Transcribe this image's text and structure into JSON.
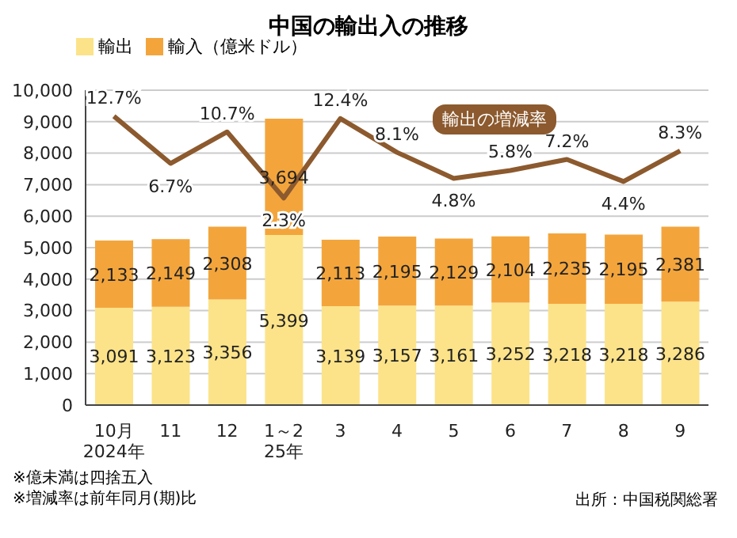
{
  "chart_data": {
    "type": "bar",
    "title": "中国の輸出入の推移",
    "categories": [
      "10月\n2024年",
      "11",
      "12",
      "1～2\n25年",
      "3",
      "4",
      "5",
      "6",
      "7",
      "8",
      "9"
    ],
    "stacked": true,
    "series": [
      {
        "name": "輸出",
        "color": "#fce38a",
        "values": [
          3091,
          3123,
          3356,
          5399,
          3139,
          3157,
          3161,
          3252,
          3218,
          3218,
          3286
        ],
        "value_labels": [
          "3,091",
          "3,123",
          "3,356",
          "5,399",
          "3,139",
          "3,157",
          "3,161",
          "3,252",
          "3,218",
          "3,218",
          "3,286"
        ]
      },
      {
        "name": "輸入（億米ドル）",
        "color": "#f3a53c",
        "values": [
          2133,
          2149,
          2308,
          3694,
          2113,
          2195,
          2129,
          2104,
          2235,
          2195,
          2381
        ],
        "value_labels": [
          "2,133",
          "2,149",
          "2,308",
          "3,694",
          "2,113",
          "2,195",
          "2,129",
          "2,104",
          "2,235",
          "2,195",
          "2,381"
        ]
      },
      {
        "name": "輸出の増減率",
        "type": "line",
        "axis": "y2",
        "color": "#8c5a2e",
        "values": [
          12.7,
          6.7,
          10.7,
          2.3,
          12.4,
          8.1,
          4.8,
          5.8,
          7.2,
          4.4,
          8.3
        ],
        "value_labels": [
          "12.7%",
          "6.7%",
          "10.7%",
          "2.3%",
          "12.4%",
          "8.1%",
          "4.8%",
          "5.8%",
          "7.2%",
          "4.4%",
          "8.3%"
        ]
      }
    ],
    "ylim": [
      0,
      10000
    ],
    "yticks": [
      {
        "value": 0,
        "label": "0"
      },
      {
        "value": 1000,
        "label": "1,000"
      },
      {
        "value": 2000,
        "label": "2,000"
      },
      {
        "value": 3000,
        "label": "3,000"
      },
      {
        "value": 4000,
        "label": "4,000"
      },
      {
        "value": 5000,
        "label": "5,000"
      },
      {
        "value": 6000,
        "label": "6,000"
      },
      {
        "value": 7000,
        "label": "7,000"
      },
      {
        "value": 8000,
        "label": "8,000"
      },
      {
        "value": 9000,
        "label": "9,000"
      },
      {
        "value": 10000,
        "label": "10,000"
      }
    ],
    "y2lim": [
      -24,
      16
    ],
    "tick_labels": "xy",
    "grid": "y",
    "legend": "top left",
    "annotations": [
      "※億未満は四捨五入",
      "※増減率は前年同月(期)比",
      "出所：中国税関総署"
    ]
  }
}
